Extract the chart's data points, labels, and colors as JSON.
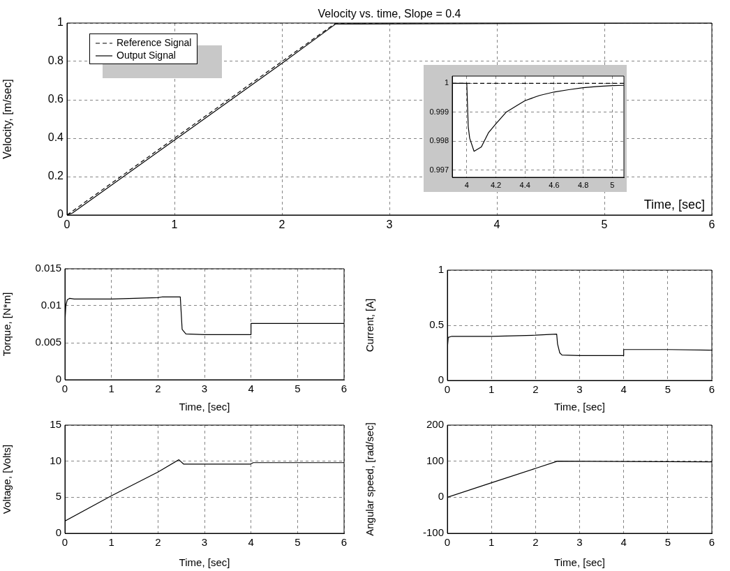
{
  "chart_data": [
    {
      "type": "line",
      "title": "Velocity vs. time, Slope = 0.4",
      "xlabel": "Time, [sec]",
      "ylabel": "Velocity, [m/sec]",
      "xlim": [
        0,
        6
      ],
      "xticks": [
        0,
        1,
        2,
        3,
        4,
        5,
        6
      ],
      "ylim": [
        0,
        1
      ],
      "yticks": [
        0,
        0.2,
        0.4,
        0.6,
        0.8,
        1
      ],
      "grid": true,
      "legend": "top left",
      "series": [
        {
          "name": "Reference Signal",
          "color": "#000000",
          "line_style": "dashed",
          "x": [
            0,
            2.5,
            6
          ],
          "values": [
            0,
            1,
            1
          ]
        },
        {
          "name": "Output Signal",
          "color": "#000000",
          "line_style": "solid",
          "x": [
            0,
            0.05,
            1,
            2,
            2.5,
            6
          ],
          "values": [
            0,
            0.01,
            0.39,
            0.79,
            0.995,
            1
          ]
        }
      ]
    },
    {
      "type": "line",
      "xlim": [
        3.9,
        5.08
      ],
      "xticks": [
        4,
        4.2,
        4.4,
        4.6,
        4.8,
        5
      ],
      "ylim": [
        0.99675,
        1.00025
      ],
      "yticks": [
        0.997,
        0.998,
        0.999,
        1
      ],
      "grid": true,
      "series": [
        {
          "color": "#000000",
          "line_style": "dashed",
          "x": [
            3.9,
            5.08
          ],
          "values": [
            1,
            1
          ]
        },
        {
          "color": "#000000",
          "line_style": "solid",
          "x": [
            3.9,
            4.0,
            4.01,
            4.02,
            4.05,
            4.1,
            4.15,
            4.2,
            4.27,
            4.35,
            4.4,
            4.5,
            4.6,
            4.7,
            4.8,
            4.9,
            5.0,
            5.08
          ],
          "values": [
            1,
            1,
            0.9985,
            0.9981,
            0.99765,
            0.9978,
            0.9983,
            0.9986,
            0.999,
            0.99925,
            0.9994,
            0.99958,
            0.9997,
            0.99978,
            0.99985,
            0.99989,
            0.99992,
            0.99993
          ]
        }
      ]
    },
    {
      "type": "line",
      "xlabel": "Time, [sec]",
      "ylabel": "Torque, [N*m]",
      "xlim": [
        0,
        6
      ],
      "xticks": [
        0,
        1,
        2,
        3,
        4,
        5,
        6
      ],
      "ylim": [
        0,
        0.015
      ],
      "yticks": [
        0,
        0.005,
        0.01,
        0.015
      ],
      "grid": true,
      "series": [
        {
          "color": "#000000",
          "line_style": "solid",
          "x": [
            0,
            0.02,
            0.05,
            0.1,
            0.2,
            1,
            1.5,
            2,
            2.1,
            2.48,
            2.5,
            2.52,
            2.6,
            3,
            3.99,
            4,
            6
          ],
          "values": [
            0.0077,
            0.01,
            0.0108,
            0.011,
            0.0109,
            0.0109,
            0.011,
            0.0111,
            0.0112,
            0.0112,
            0.009,
            0.0068,
            0.0062,
            0.0061,
            0.0061,
            0.0076,
            0.0076
          ]
        }
      ]
    },
    {
      "type": "line",
      "xlabel": "Time, [sec]",
      "ylabel": "Current, [A]",
      "xlim": [
        0,
        6
      ],
      "xticks": [
        0,
        1,
        2,
        3,
        4,
        5,
        6
      ],
      "ylim": [
        0,
        1
      ],
      "yticks": [
        0,
        0.5,
        1
      ],
      "grid": true,
      "series": [
        {
          "color": "#000000",
          "line_style": "solid",
          "x": [
            0,
            0.02,
            0.1,
            1,
            2,
            2.48,
            2.5,
            2.55,
            2.6,
            3,
            3.99,
            4,
            5,
            6
          ],
          "values": [
            0.29,
            0.39,
            0.4,
            0.4,
            0.41,
            0.42,
            0.33,
            0.25,
            0.23,
            0.225,
            0.225,
            0.28,
            0.28,
            0.275
          ]
        }
      ]
    },
    {
      "type": "line",
      "xlabel": "Time, [sec]",
      "ylabel": "Voltage, [Volts]",
      "xlim": [
        0,
        6
      ],
      "xticks": [
        0,
        1,
        2,
        3,
        4,
        5,
        6
      ],
      "ylim": [
        0,
        15
      ],
      "yticks": [
        0,
        5,
        10,
        15
      ],
      "grid": true,
      "series": [
        {
          "color": "#000000",
          "line_style": "solid",
          "x": [
            0,
            1,
            2,
            2.45,
            2.55,
            3,
            3.99,
            4.05,
            5,
            6
          ],
          "values": [
            1.7,
            5.2,
            8.5,
            10.2,
            9.6,
            9.6,
            9.6,
            9.8,
            9.8,
            9.8
          ]
        }
      ]
    },
    {
      "type": "line",
      "xlabel": "Time, [sec]",
      "ylabel": "Angular speed, [rad/sec]",
      "xlim": [
        0,
        6
      ],
      "xticks": [
        0,
        1,
        2,
        3,
        4,
        5,
        6
      ],
      "ylim": [
        -100,
        200
      ],
      "yticks": [
        -100,
        0,
        100,
        200
      ],
      "grid": true,
      "series": [
        {
          "color": "#000000",
          "line_style": "solid",
          "x": [
            0,
            1,
            2,
            2.5,
            4,
            6
          ],
          "values": [
            0,
            40,
            80,
            100,
            99,
            98
          ]
        }
      ]
    }
  ]
}
